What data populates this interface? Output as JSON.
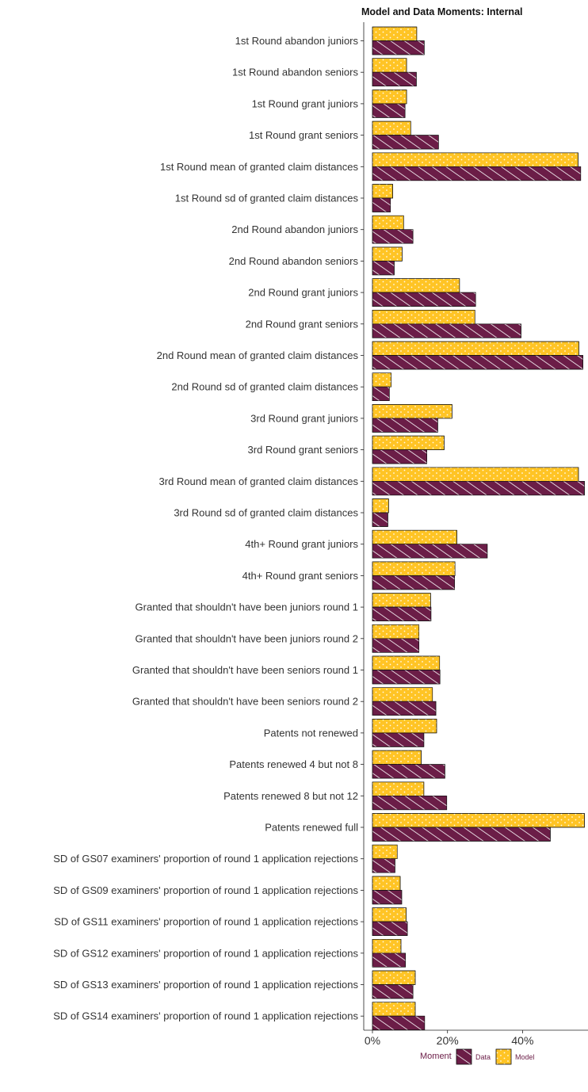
{
  "chart_data": {
    "type": "bar",
    "orientation": "horizontal",
    "title": "Model and Data Moments: Internal",
    "xlim": [
      0,
      0.57
    ],
    "xticks": [
      {
        "value": 0,
        "label": "0%"
      },
      {
        "value": 0.2,
        "label": "20%"
      },
      {
        "value": 0.4,
        "label": "40%"
      }
    ],
    "categories": [
      "1st Round abandon juniors",
      "1st Round abandon seniors",
      "1st Round grant juniors",
      "1st Round grant seniors",
      "1st Round mean of granted claim distances",
      "1st Round sd of granted claim distances",
      "2nd Round abandon juniors",
      "2nd Round abandon seniors",
      "2nd Round grant juniors",
      "2nd Round grant seniors",
      "2nd Round mean of granted claim distances",
      "2nd Round sd of granted claim distances",
      "3rd Round grant juniors",
      "3rd Round grant seniors",
      "3rd Round mean of granted claim distances",
      "3rd Round sd of granted claim distances",
      "4th+ Round grant juniors",
      "4th+ Round grant seniors",
      "Granted that shouldn't have been juniors round 1",
      "Granted that shouldn't have been juniors round 2",
      "Granted that shouldn't have been seniors round 1",
      "Granted that shouldn't have been seniors round 2",
      "Patents not renewed",
      "Patents renewed 4 but not 8",
      "Patents renewed 8 but not 12",
      "Patents renewed full",
      "SD of GS07 examiners' proportion of round 1 application rejections",
      "SD of GS09 examiners' proportion of round 1 application rejections",
      "SD of GS11 examiners' proportion of round 1 application rejections",
      "SD of GS12 examiners' proportion of round 1 application rejections",
      "SD of GS13 examiners' proportion of round 1 application rejections",
      "SD of GS14 examiners' proportion of round 1 application rejections"
    ],
    "series": [
      {
        "name": "Model",
        "color": "#FFC425",
        "values": [
          0.118,
          0.091,
          0.091,
          0.102,
          0.548,
          0.054,
          0.083,
          0.079,
          0.232,
          0.273,
          0.55,
          0.05,
          0.212,
          0.191,
          0.549,
          0.043,
          0.225,
          0.22,
          0.155,
          0.124,
          0.179,
          0.16,
          0.171,
          0.13,
          0.137,
          0.565,
          0.066,
          0.074,
          0.09,
          0.076,
          0.114,
          0.114
        ]
      },
      {
        "name": "Data",
        "color": "#6B1D47",
        "values": [
          0.138,
          0.117,
          0.087,
          0.176,
          0.555,
          0.048,
          0.108,
          0.058,
          0.275,
          0.396,
          0.561,
          0.045,
          0.174,
          0.145,
          0.565,
          0.041,
          0.306,
          0.219,
          0.156,
          0.124,
          0.18,
          0.169,
          0.137,
          0.193,
          0.198,
          0.474,
          0.06,
          0.078,
          0.093,
          0.088,
          0.108,
          0.139
        ]
      }
    ],
    "legend": {
      "title": "Moment",
      "position": "bottom",
      "entries": [
        "Data",
        "Model"
      ]
    }
  }
}
